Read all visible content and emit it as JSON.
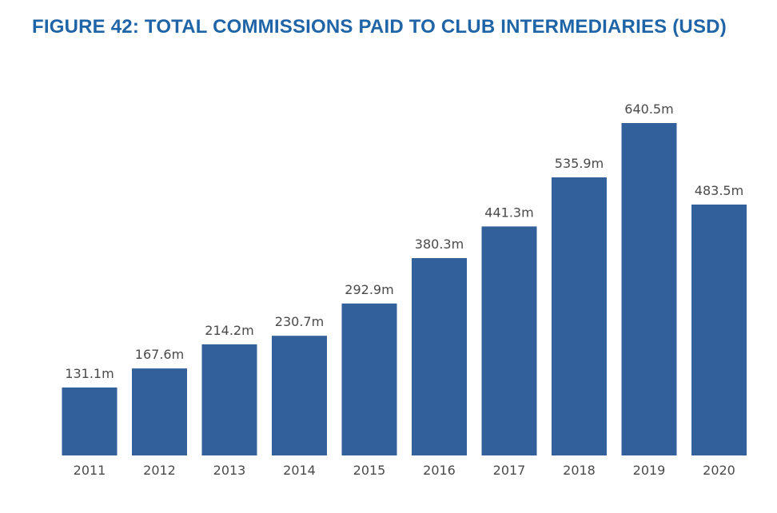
{
  "figure_title": "FIGURE 42: TOTAL COMMISSIONS PAID TO CLUB INTERMEDIARIES (USD)",
  "colors": {
    "title": "#1f64a6",
    "bar": "#31609a",
    "label_text": "#4a4a4a"
  },
  "chart_data": {
    "type": "bar",
    "title": "FIGURE 42: TOTAL COMMISSIONS PAID TO CLUB INTERMEDIARIES (USD)",
    "xlabel": "",
    "ylabel": "",
    "unit_suffix": "m",
    "categories": [
      "2011",
      "2012",
      "2013",
      "2014",
      "2015",
      "2016",
      "2017",
      "2018",
      "2019",
      "2020"
    ],
    "values": [
      131.1,
      167.6,
      214.2,
      230.7,
      292.9,
      380.3,
      441.3,
      535.9,
      640.5,
      483.5
    ],
    "data_labels": [
      "131.1m",
      "167.6m",
      "214.2m",
      "230.7m",
      "292.9m",
      "380.3m",
      "441.3m",
      "535.9m",
      "640.5m",
      "483.5m"
    ],
    "ylim": [
      0,
      640.5
    ],
    "grid": false,
    "legend": "none",
    "y_axis_visible": false
  }
}
